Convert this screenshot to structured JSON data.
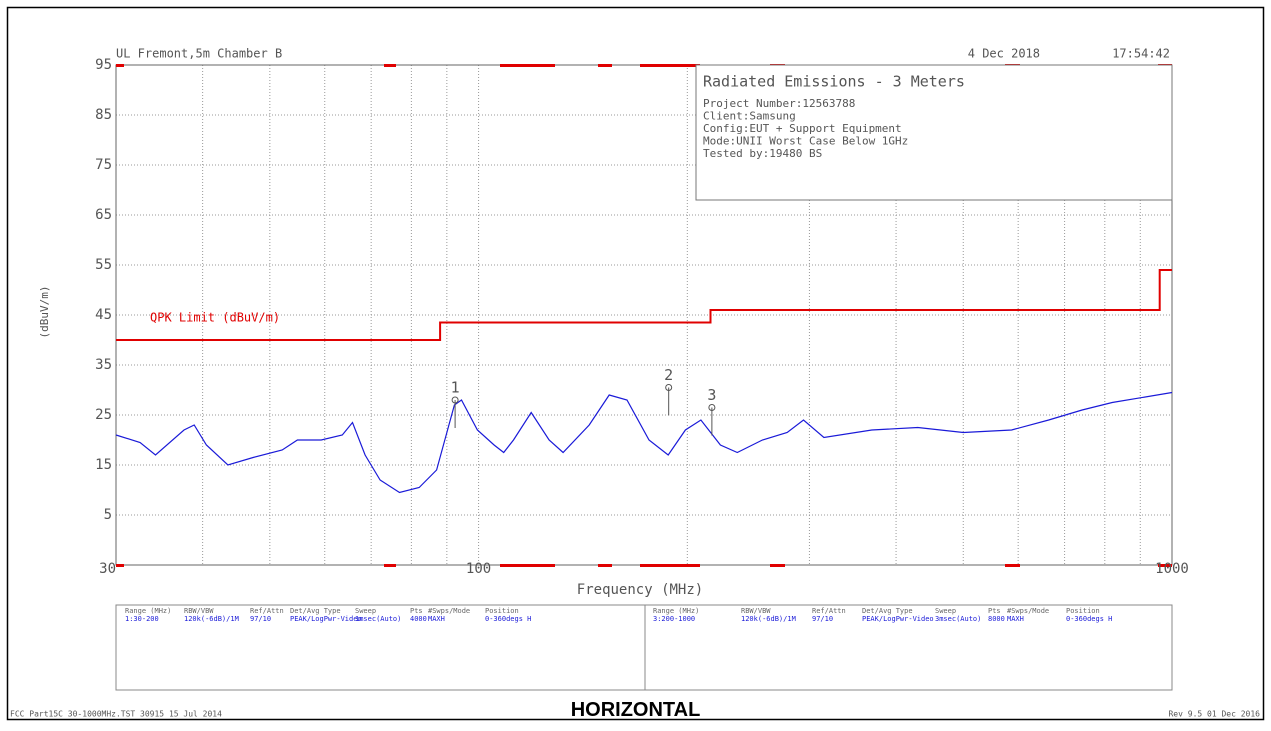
{
  "header": {
    "site": "UL Fremont,5m Chamber B",
    "date": "4 Dec 2018",
    "time": "17:54:42"
  },
  "info": {
    "title": "Radiated Emissions - 3 Meters",
    "lines": [
      "Project Number:12563788",
      "Client:Samsung",
      "Config:EUT + Support Equipment",
      "Mode:UNII Worst Case Below 1GHz",
      "Tested by:19480 BS"
    ]
  },
  "chart_data": {
    "type": "line",
    "x_label": "Frequency (MHz)",
    "y_label": "(dBuV/m)",
    "xlog": true,
    "grid": true,
    "xlim": [
      30,
      1000
    ],
    "xticks": [
      30,
      100,
      1000
    ],
    "xgrid": [
      40,
      50,
      60,
      70,
      80,
      90,
      200,
      300,
      400,
      500,
      600,
      700,
      800,
      900
    ],
    "ylim": [
      -5,
      95
    ],
    "yticks": [
      5,
      15,
      25,
      35,
      45,
      55,
      65,
      75,
      85,
      95
    ],
    "series": [
      {
        "name": "QPK Limit (dBuV/m)",
        "color": "#e00000",
        "x": [
          30,
          88,
          88,
          216,
          216,
          960,
          960,
          1000
        ],
        "values": [
          40,
          40,
          43.5,
          43.5,
          46,
          46,
          54,
          54
        ]
      },
      {
        "color": "#1a1ad8",
        "x": [
          30,
          32.5,
          34.2,
          37.6,
          38.9,
          40.5,
          43.5,
          47.3,
          52.1,
          54.8,
          59.3,
          63.6,
          65.8,
          68.6,
          72.1,
          76.9,
          82.1,
          87,
          92.3,
          94.5,
          99.6,
          105.3,
          108.7,
          112.3,
          119.1,
          126.4,
          132.4,
          144.4,
          154.3,
          163.7,
          176.1,
          187.7,
          198.7,
          209.2,
          223.2,
          236.1,
          256.6,
          278.7,
          294.2,
          314.8,
          369,
          430,
          500,
          587,
          664,
          742,
          820,
          1000
        ],
        "values": [
          21,
          19.5,
          17,
          22,
          23,
          19,
          15,
          16.5,
          18,
          20,
          20,
          21,
          23.5,
          17,
          12,
          9.5,
          10.5,
          14,
          27,
          28,
          22,
          19,
          17.5,
          20,
          25.5,
          20,
          17.5,
          23,
          29,
          28,
          20,
          17,
          22,
          24,
          19,
          17.5,
          20,
          21.5,
          24,
          20.5,
          22,
          22.5,
          21.5,
          22,
          24,
          26,
          27.5,
          29.5
        ]
      }
    ],
    "markers": [
      {
        "label": "1",
        "x": 92.5,
        "value": 28
      },
      {
        "label": "2",
        "x": 188,
        "value": 30.5
      },
      {
        "label": "3",
        "x": 217,
        "value": 26.5
      }
    ]
  },
  "settings": {
    "headers": [
      "Range (MHz)",
      "RBW/VBW",
      "Ref/Attn",
      "Det/Avg Type",
      "Sweep",
      "Pts",
      "#Swps/Mode",
      "Position"
    ],
    "rows": [
      [
        "1:30-200",
        "120k(-6dB)/1M",
        "97/10",
        "PEAK/LogPwr-Video",
        "1msec(Auto)",
        "4000",
        "MAXH",
        "0-360degs H"
      ],
      [
        "3:200-1000",
        "120k(-6dB)/1M",
        "97/10",
        "PEAK/LogPwr-Video",
        "3msec(Auto)",
        "8000",
        "MAXH",
        "0-360degs H"
      ]
    ]
  },
  "footer": {
    "left": "FCC Part15C 30-1000MHz.TST 30915 15 Jul 2014",
    "right": "Rev 9.5 01 Dec 2016",
    "caption": "HORIZONTAL"
  }
}
